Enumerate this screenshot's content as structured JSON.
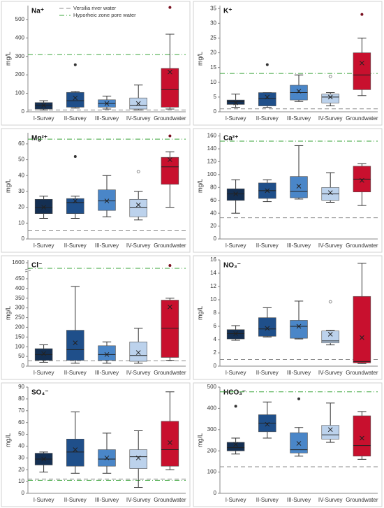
{
  "legend": [
    {
      "name": "Versilia river water",
      "color": "#8c8c8c",
      "dash": "6,4"
    },
    {
      "name": "Hyporheic zone pore water",
      "color": "#3aa53a",
      "dash": "7,3,1,3"
    }
  ],
  "chart_data": [
    {
      "type": "box",
      "title": "Na⁺",
      "ylabel": "mg/L",
      "categories": [
        "I-Survey",
        "II-Survey",
        "III-Survey",
        "IV-Survey",
        "Groundwater"
      ],
      "colors": [
        "#142f52",
        "#1f4f8a",
        "#4a86c8",
        "#bcd2ec",
        "#c8102e"
      ],
      "boxes": [
        {
          "min": 10,
          "q1": 15,
          "median": 35,
          "q3": 50,
          "max": 60,
          "mean": 35,
          "outliers": []
        },
        {
          "min": 20,
          "q1": 25,
          "median": 60,
          "q3": 105,
          "max": 110,
          "mean": 75,
          "outliers": [
            255
          ]
        },
        {
          "min": 15,
          "q1": 25,
          "median": 45,
          "q3": 65,
          "max": 85,
          "mean": 45,
          "outliers": []
        },
        {
          "min": 10,
          "q1": 15,
          "median": 35,
          "q3": 75,
          "max": 145,
          "mean": 45,
          "outliers": []
        },
        {
          "min": 15,
          "q1": 25,
          "median": 120,
          "q3": 235,
          "max": 420,
          "mean": 215,
          "outliers": [
            565
          ]
        }
      ],
      "ylim": [
        0,
        575
      ],
      "yticks": [
        0,
        100,
        200,
        300,
        400,
        500
      ],
      "river_line": 10,
      "pore_water_line": 310
    },
    {
      "type": "box",
      "title": "K⁺",
      "ylabel": "mg/L",
      "categories": [
        "I-Survey",
        "II-Survey",
        "III-Survey",
        "IV-Survey",
        "Groundwater"
      ],
      "colors": [
        "#142f52",
        "#1f4f8a",
        "#4a86c8",
        "#bcd2ec",
        "#c8102e"
      ],
      "boxes": [
        {
          "min": 1.5,
          "q1": 2.5,
          "median": 3.5,
          "q3": 4,
          "max": 6,
          "mean": 3,
          "outliers": []
        },
        {
          "min": 1.5,
          "q1": 2,
          "median": 4.5,
          "q3": 6.5,
          "max": 6.5,
          "mean": 5,
          "outliers": [
            16
          ]
        },
        {
          "min": 3.5,
          "q1": 4,
          "median": 6.5,
          "q3": 9,
          "max": 12.5,
          "mean": 7,
          "outliers": []
        },
        {
          "min": 2,
          "q1": 3,
          "median": 5,
          "q3": 6,
          "max": 6.5,
          "mean": 5,
          "outliers": [
            12
          ]
        },
        {
          "min": 5.5,
          "q1": 7.5,
          "median": 12.5,
          "q3": 20,
          "max": 25,
          "mean": 16.5,
          "outliers": [
            33
          ]
        }
      ],
      "ylim": [
        0,
        36
      ],
      "yticks": [
        0,
        5,
        10,
        15,
        20,
        25,
        30,
        35
      ],
      "river_line": 1,
      "pore_water_line": 13
    },
    {
      "type": "box",
      "title": "Mg²⁺",
      "ylabel": "mg/L",
      "categories": [
        "I-Survey",
        "II-Survey",
        "III-Survey",
        "IV-Survey",
        "Groundwater"
      ],
      "colors": [
        "#142f52",
        "#1f4f8a",
        "#4a86c8",
        "#bcd2ec",
        "#c8102e"
      ],
      "boxes": [
        {
          "min": 13,
          "q1": 16,
          "median": 20,
          "q3": 25,
          "max": 27,
          "mean": 20,
          "outliers": []
        },
        {
          "min": 13,
          "q1": 16,
          "median": 23,
          "q3": 25.5,
          "max": 27,
          "mean": 24,
          "outliers": [
            52
          ]
        },
        {
          "min": 14,
          "q1": 18,
          "median": 24,
          "q3": 31,
          "max": 40,
          "mean": 24,
          "outliers": []
        },
        {
          "min": 12,
          "q1": 14,
          "median": 20,
          "q3": 25,
          "max": 30,
          "mean": 21.5,
          "outliers": [
            42.5
          ]
        },
        {
          "min": 20,
          "q1": 34.5,
          "median": 45.5,
          "q3": 51.5,
          "max": 55,
          "mean": 50,
          "outliers": [
            65
          ]
        }
      ],
      "ylim": [
        0,
        67
      ],
      "yticks": [
        0,
        10,
        20,
        30,
        40,
        50,
        60
      ],
      "river_line": 5.5,
      "pore_water_line": 63
    },
    {
      "type": "box",
      "title": "Ca²⁺",
      "ylabel": "mg/L",
      "categories": [
        "I-Survey",
        "II-Survey",
        "III-Survey",
        "IV-Survey",
        "Groundwater"
      ],
      "colors": [
        "#142f52",
        "#1f4f8a",
        "#4a86c8",
        "#bcd2ec",
        "#c8102e"
      ],
      "boxes": [
        {
          "min": 40,
          "q1": 60,
          "median": 70,
          "q3": 78,
          "max": 92,
          "mean": 70,
          "outliers": []
        },
        {
          "min": 58,
          "q1": 63,
          "median": 75,
          "q3": 87,
          "max": 92,
          "mean": 75,
          "outliers": []
        },
        {
          "min": 62,
          "q1": 64,
          "median": 74,
          "q3": 97,
          "max": 145,
          "mean": 82,
          "outliers": []
        },
        {
          "min": 57,
          "q1": 60,
          "median": 70,
          "q3": 80,
          "max": 103,
          "mean": 72,
          "outliers": []
        },
        {
          "min": 52,
          "q1": 73,
          "median": 93,
          "q3": 113,
          "max": 117,
          "mean": 91,
          "outliers": []
        }
      ],
      "ylim": [
        0,
        165
      ],
      "yticks": [
        0,
        20,
        40,
        60,
        80,
        100,
        120,
        140,
        160
      ],
      "river_line": 33,
      "pore_water_line": 152
    },
    {
      "type": "box",
      "title": "Cl⁻",
      "ylabel": "mg/L",
      "categories": [
        "I-Survey",
        "II-Survey",
        "III-Survey",
        "IV-Survey",
        "Groundwater"
      ],
      "colors": [
        "#142f52",
        "#1f4f8a",
        "#4a86c8",
        "#bcd2ec",
        "#c8102e"
      ],
      "boxes": [
        {
          "min": 20,
          "q1": 30,
          "median": 60,
          "q3": 90,
          "max": 110,
          "mean": 65,
          "outliers": []
        },
        {
          "min": 15,
          "q1": 30,
          "median": 85,
          "q3": 185,
          "max": 410,
          "mean": 120,
          "outliers": []
        },
        {
          "min": 15,
          "q1": 30,
          "median": 60,
          "q3": 105,
          "max": 125,
          "mean": 60,
          "outliers": []
        },
        {
          "min": 15,
          "q1": 25,
          "median": 55,
          "q3": 125,
          "max": 195,
          "mean": 70,
          "outliers": []
        },
        {
          "min": 30,
          "q1": 45,
          "median": 195,
          "q3": 340,
          "max": 350,
          "mean": 305,
          "outliers": [
            1590
          ]
        }
      ],
      "ylim": [
        0,
        1610
      ],
      "axis_break": [
        475,
        1575
      ],
      "yticks": [
        0,
        50,
        100,
        150,
        200,
        250,
        300,
        350,
        400,
        450,
        1600
      ],
      "river_line": 28,
      "pore_water_line": 1580
    },
    {
      "type": "box",
      "title": "NO₃⁻",
      "ylabel": "mg/L",
      "categories": [
        "I-Survey",
        "II-Survey",
        "III-Survey",
        "IV-Survey",
        "Groundwater"
      ],
      "colors": [
        "#142f52",
        "#1f4f8a",
        "#4a86c8",
        "#bcd2ec",
        "#c8102e"
      ],
      "boxes": [
        {
          "min": 3.9,
          "q1": 4.1,
          "median": 4.9,
          "q3": 5.5,
          "max": 6.1,
          "mean": 4.9,
          "outliers": []
        },
        {
          "min": 4.4,
          "q1": 4.5,
          "median": 5.6,
          "q3": 7.3,
          "max": 8.8,
          "mean": 5.7,
          "outliers": []
        },
        {
          "min": 4.1,
          "q1": 4.2,
          "median": 6,
          "q3": 6.9,
          "max": 9.8,
          "mean": 6,
          "outliers": []
        },
        {
          "min": 3.2,
          "q1": 3.5,
          "median": 3.8,
          "q3": 5.3,
          "max": 5.4,
          "mean": 4.8,
          "outliers": [
            9.7
          ]
        },
        {
          "min": 0.4,
          "q1": 0.5,
          "median": 0.7,
          "q3": 10.5,
          "max": 15.5,
          "mean": 4.3,
          "outliers": []
        }
      ],
      "ylim": [
        0,
        16
      ],
      "yticks": [
        0,
        2,
        4,
        6,
        8,
        10,
        12,
        14,
        16
      ],
      "river_line": 1,
      "pore_water_line": null
    },
    {
      "type": "box",
      "title": "SO₄⁻",
      "ylabel": "mg/L",
      "categories": [
        "I-Survey",
        "II-Survey",
        "III-Survey",
        "IV-Survey",
        "Groundwater"
      ],
      "colors": [
        "#142f52",
        "#1f4f8a",
        "#4a86c8",
        "#bcd2ec",
        "#c8102e"
      ],
      "boxes": [
        {
          "min": 18,
          "q1": 24,
          "median": 29,
          "q3": 34,
          "max": 35,
          "mean": 29,
          "outliers": []
        },
        {
          "min": 17,
          "q1": 23,
          "median": 35,
          "q3": 46,
          "max": 69,
          "mean": 37,
          "outliers": []
        },
        {
          "min": 17,
          "q1": 23,
          "median": 29,
          "q3": 37,
          "max": 51,
          "mean": 30,
          "outliers": []
        },
        {
          "min": 5,
          "q1": 21,
          "median": 31,
          "q3": 37,
          "max": 53,
          "mean": 30,
          "outliers": []
        },
        {
          "min": 20,
          "q1": 23,
          "median": 37,
          "q3": 61,
          "max": 86,
          "mean": 43,
          "outliers": []
        }
      ],
      "ylim": [
        0,
        90
      ],
      "yticks": [
        0,
        10,
        20,
        30,
        40,
        50,
        60,
        70,
        80,
        90
      ],
      "river_line": 12,
      "pore_water_line": 11
    },
    {
      "type": "box",
      "title": "HCO₃⁻",
      "ylabel": "mg/L",
      "categories": [
        "I-Survey",
        "II-Survey",
        "III-Survey",
        "IV-Survey",
        "Groundwater"
      ],
      "colors": [
        "#142f52",
        "#1f4f8a",
        "#4a86c8",
        "#bcd2ec",
        "#c8102e"
      ],
      "boxes": [
        {
          "min": 185,
          "q1": 200,
          "median": 215,
          "q3": 240,
          "max": 260,
          "mean": 230,
          "outliers": [
            410
          ]
        },
        {
          "min": 260,
          "q1": 290,
          "median": 330,
          "q3": 370,
          "max": 430,
          "mean": 325,
          "outliers": []
        },
        {
          "min": 175,
          "q1": 190,
          "median": 205,
          "q3": 285,
          "max": 310,
          "mean": 235,
          "outliers": [
            445
          ]
        },
        {
          "min": 240,
          "q1": 255,
          "median": 275,
          "q3": 320,
          "max": 425,
          "mean": 300,
          "outliers": []
        },
        {
          "min": 160,
          "q1": 175,
          "median": 225,
          "q3": 365,
          "max": 385,
          "mean": 260,
          "outliers": []
        }
      ],
      "ylim": [
        0,
        500
      ],
      "yticks": [
        0,
        100,
        200,
        300,
        400,
        500
      ],
      "river_line": 125,
      "pore_water_line": 478
    }
  ]
}
